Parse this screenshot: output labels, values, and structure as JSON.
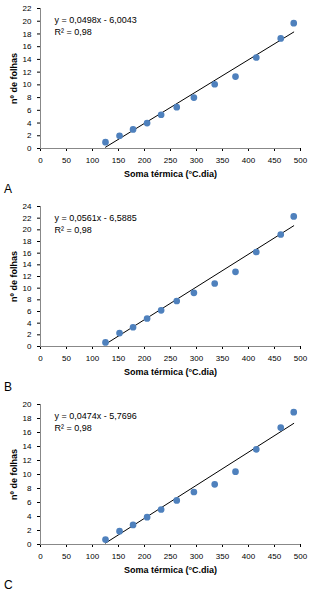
{
  "chart_data": [
    {
      "type": "scatter",
      "title": "A",
      "x_label": "Soma térmica (°C.dia)",
      "y_label": "nº de folhas",
      "x": [
        125,
        152,
        178,
        205,
        232,
        262,
        295,
        335,
        375,
        415,
        462,
        487
      ],
      "values": [
        1,
        2,
        3,
        4,
        5.3,
        6.5,
        8,
        10.1,
        11.3,
        14.3,
        17.3,
        19.7
      ],
      "color": "#4f81bd",
      "marker": "circle",
      "trendline": {
        "x": [
          125,
          487
        ],
        "values": [
          0.2,
          18.3
        ]
      },
      "annotations": [
        "y = 0,0498x - 6,0043",
        "R² = 0,98"
      ],
      "xlim": [
        0,
        500
      ],
      "xticks": [
        0,
        50,
        100,
        150,
        200,
        250,
        300,
        350,
        400,
        450,
        500
      ],
      "ylim": [
        0,
        22
      ],
      "yticks": [
        0,
        2,
        4,
        6,
        8,
        10,
        12,
        14,
        16,
        18,
        20,
        22
      ],
      "grid": false
    },
    {
      "type": "scatter",
      "title": "B",
      "x_label": "Soma térmica (°C.dia)",
      "y_label": "nº de folhas",
      "x": [
        125,
        152,
        178,
        205,
        232,
        262,
        295,
        335,
        375,
        415,
        462,
        487
      ],
      "values": [
        0.7,
        2.3,
        3.3,
        4.8,
        6.2,
        7.8,
        9.2,
        10.8,
        12.8,
        16.2,
        19.2,
        22.3
      ],
      "color": "#4f81bd",
      "marker": "circle",
      "trendline": {
        "x": [
          125,
          487
        ],
        "values": [
          0.4,
          20.7
        ]
      },
      "annotations": [
        "y = 0,0561x - 6,5885",
        "R² = 0,98"
      ],
      "xlim": [
        0,
        500
      ],
      "xticks": [
        0,
        50,
        100,
        150,
        200,
        250,
        300,
        350,
        400,
        450,
        500
      ],
      "ylim": [
        0,
        24
      ],
      "yticks": [
        0,
        2,
        4,
        6,
        8,
        10,
        12,
        14,
        16,
        18,
        20,
        22,
        24
      ],
      "grid": false
    },
    {
      "type": "scatter",
      "title": "C",
      "x_label": "Soma térmica (°C.dia)",
      "y_label": "nº de folhas",
      "x": [
        125,
        152,
        178,
        205,
        232,
        262,
        295,
        335,
        375,
        415,
        462,
        487
      ],
      "values": [
        0.7,
        1.9,
        2.8,
        3.9,
        5.0,
        6.3,
        7.5,
        8.6,
        10.4,
        13.6,
        16.7,
        18.9
      ],
      "color": "#4f81bd",
      "marker": "circle",
      "trendline": {
        "x": [
          125,
          487
        ],
        "values": [
          0.2,
          17.3
        ]
      },
      "annotations": [
        "y = 0,0474x - 5,7696",
        "R² = 0,98"
      ],
      "xlim": [
        0,
        500
      ],
      "xticks": [
        0,
        50,
        100,
        150,
        200,
        250,
        300,
        350,
        400,
        450,
        500
      ],
      "ylim": [
        0,
        20
      ],
      "yticks": [
        0,
        2,
        4,
        6,
        8,
        10,
        12,
        14,
        16,
        18,
        20
      ],
      "grid": false
    }
  ]
}
